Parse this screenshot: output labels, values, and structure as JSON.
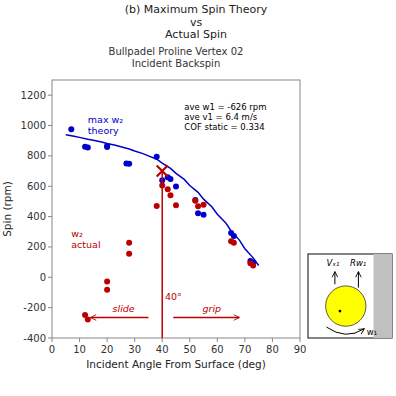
{
  "chart_data": {
    "type": "scatter",
    "title": "(b) Maximum Spin Theory\nvs\nActual Spin",
    "subtitle": "Bullpadel Proline Vertex 02\nIncident Backspin",
    "xlabel": "Incident Angle From Surface (deg)",
    "ylabel": "Spin (rpm)",
    "xlim": [
      0,
      90
    ],
    "ylim": [
      -400,
      1300
    ],
    "xticks": [
      0,
      10,
      20,
      30,
      40,
      50,
      60,
      70,
      80,
      90
    ],
    "yticks": [
      -400,
      -200,
      0,
      200,
      400,
      600,
      800,
      1000,
      1200
    ],
    "grid": false,
    "series": [
      {
        "type": "line",
        "color": "#0000cc",
        "x": [
          5,
          8,
          10,
          13,
          15,
          18,
          20,
          23,
          25,
          28,
          30,
          33,
          35,
          38,
          40,
          43,
          45,
          48,
          50,
          53,
          55,
          58,
          60,
          63,
          65,
          68,
          70,
          73,
          75
        ],
        "values": [
          940,
          930,
          922,
          910,
          903,
          892,
          882,
          870,
          860,
          845,
          832,
          815,
          800,
          778,
          752,
          718,
          685,
          645,
          605,
          560,
          515,
          465,
          415,
          360,
          305,
          245,
          188,
          128,
          78
        ]
      },
      {
        "type": "scatter",
        "marker": "circle",
        "color": "#0000cc",
        "x": [
          7,
          12,
          13,
          20,
          20,
          27,
          28,
          38,
          40,
          42,
          43,
          45,
          52,
          53,
          55,
          65,
          66,
          72,
          73
        ],
        "values": [
          975,
          860,
          855,
          865,
          858,
          750,
          748,
          795,
          640,
          660,
          648,
          598,
          510,
          422,
          412,
          292,
          272,
          108,
          98
        ]
      },
      {
        "type": "scatter",
        "marker": "circle",
        "color": "#bb0000",
        "x": [
          12,
          13,
          20,
          20,
          28,
          28,
          38,
          40,
          42,
          43,
          45,
          52,
          53,
          55,
          65,
          66,
          72,
          73
        ],
        "values": [
          -248,
          -278,
          -28,
          -82,
          228,
          155,
          470,
          605,
          580,
          540,
          475,
          505,
          468,
          478,
          238,
          228,
          92,
          78
        ]
      },
      {
        "type": "scatter",
        "marker": "x",
        "color": "#bb0000",
        "x": [
          40
        ],
        "values": [
          700
        ]
      },
      {
        "type": "line",
        "color": "#bb0000",
        "x": [
          40,
          40
        ],
        "values": [
          -400,
          700
        ]
      }
    ],
    "annotations": [
      {
        "text": "max w₂\ntheory",
        "x": 13,
        "y": 1075,
        "color": "#0000cc"
      },
      {
        "text": "w₂\nactual",
        "x": 7,
        "y": 320,
        "color": "#bb0000"
      },
      {
        "text": "ave w1 = -626 rpm\nave v1 = 6.4 m/s\nCOF static = 0.334",
        "x": 48,
        "y": 1150,
        "color": "#000000"
      },
      {
        "text": "40°",
        "x": 41,
        "y": -95,
        "color": "#bb0000"
      }
    ],
    "arrows": [
      {
        "text": "slide",
        "label_x": 26,
        "label_y": -255,
        "x": [
          35,
          14
        ],
        "y": -265,
        "color": "#bb0000"
      },
      {
        "text": "grip",
        "label_x": 58,
        "label_y": -255,
        "x": [
          44,
          68
        ],
        "y": -265,
        "color": "#bb0000"
      }
    ],
    "inset": {
      "labels": [
        "w₁",
        "Vₓ₁",
        "Rw₁"
      ]
    }
  }
}
